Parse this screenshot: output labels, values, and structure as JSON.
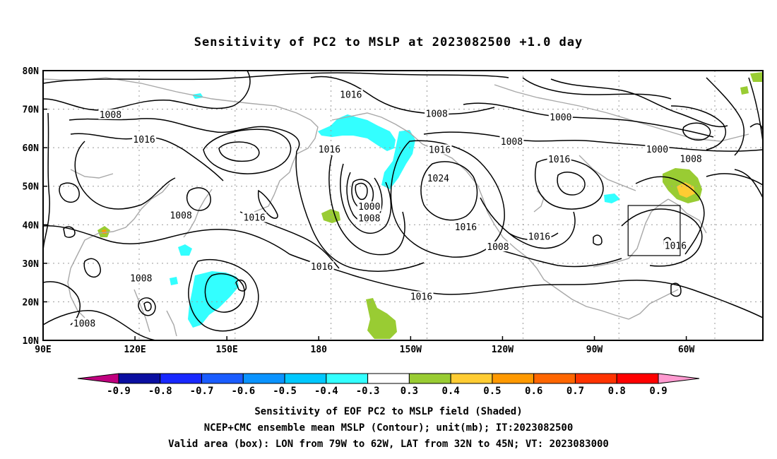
{
  "title": "Sensitivity of PC2 to MSLP at 2023082500 +1.0 day",
  "axes": {
    "lat_labels": [
      "80N",
      "70N",
      "60N",
      "50N",
      "40N",
      "30N",
      "20N",
      "10N"
    ],
    "lon_labels": [
      "90E",
      "120E",
      "150E",
      "180",
      "150W",
      "120W",
      "90W",
      "60W"
    ]
  },
  "contour_labels": [
    {
      "text": "1016",
      "lon": -169.5,
      "lat": 73.7
    },
    {
      "text": "1008",
      "lon": 112.0,
      "lat": 68.5
    },
    {
      "text": "1016",
      "lon": 123.0,
      "lat": 62.0
    },
    {
      "text": "1016",
      "lon": -176.5,
      "lat": 59.5
    },
    {
      "text": "1008",
      "lon": -141.5,
      "lat": 68.7
    },
    {
      "text": "1016",
      "lon": -140.5,
      "lat": 59.4
    },
    {
      "text": "1000",
      "lon": -101.0,
      "lat": 67.8
    },
    {
      "text": "1008",
      "lon": -117.0,
      "lat": 61.5
    },
    {
      "text": "1000",
      "lon": -69.5,
      "lat": 59.5
    },
    {
      "text": "1008",
      "lon": -58.5,
      "lat": 57.0
    },
    {
      "text": "1016",
      "lon": -101.5,
      "lat": 56.9
    },
    {
      "text": "1024",
      "lon": -141.0,
      "lat": 52.0
    },
    {
      "text": "1000",
      "lon": -163.5,
      "lat": 44.6
    },
    {
      "text": "1008",
      "lon": -163.5,
      "lat": 41.6
    },
    {
      "text": "1008",
      "lon": 135.0,
      "lat": 42.3
    },
    {
      "text": "1016",
      "lon": 159.0,
      "lat": 41.8
    },
    {
      "text": "1016",
      "lon": -132.0,
      "lat": 39.3
    },
    {
      "text": "1016",
      "lon": -108.0,
      "lat": 36.8
    },
    {
      "text": "1008",
      "lon": -121.5,
      "lat": 34.2
    },
    {
      "text": "1016",
      "lon": -63.5,
      "lat": 34.5
    },
    {
      "text": "1016",
      "lon": -179.0,
      "lat": 29.1
    },
    {
      "text": "1008",
      "lon": 122.0,
      "lat": 26.0
    },
    {
      "text": "1016",
      "lon": -146.5,
      "lat": 21.3
    },
    {
      "text": "1008",
      "lon": 103.5,
      "lat": 14.3
    }
  ],
  "colorbar": {
    "labels": [
      "-0.9",
      "-0.8",
      "-0.7",
      "-0.6",
      "-0.5",
      "-0.4",
      "-0.3",
      "0.3",
      "0.4",
      "0.5",
      "0.6",
      "0.7",
      "0.8",
      "0.9"
    ],
    "under_color": "#c0007f",
    "over_color": "#ff9ad0",
    "colors": [
      "#0a0ea0",
      "#1828ff",
      "#1a5cff",
      "#0a93ff",
      "#00c8ff",
      "#33ffff",
      "#ffffff",
      "#99cc33",
      "#ffcc33",
      "#ff9900",
      "#ff6600",
      "#ff3300",
      "#ff0000"
    ]
  },
  "valid_box": {
    "lon_west": -79,
    "lon_east": -62,
    "lat_south": 32,
    "lat_north": 45
  },
  "captions": [
    "Sensitivity of EOF PC2 to MSLP field (Shaded)",
    "NCEP+CMC ensemble mean MSLP (Contour); unit(mb); IT:2023082500",
    "Valid area (box): LON from 79W to 62W, LAT from 32N to 45N; VT: 2023083000"
  ]
}
